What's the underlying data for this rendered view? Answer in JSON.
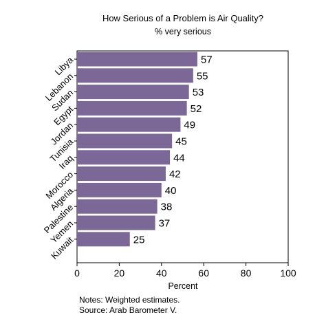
{
  "chart_data": {
    "type": "bar",
    "orientation": "horizontal",
    "title": "How Serious of a Problem is Air Quality?",
    "subtitle": "% very serious",
    "categories": [
      "Libya",
      "Lebanon",
      "Sudan",
      "Egypt",
      "Jordan",
      "Tunisia",
      "Iraq",
      "Morocco",
      "Algeria",
      "Palestine",
      "Yemen",
      "Kuwait"
    ],
    "values": [
      57,
      55,
      53,
      52,
      49,
      45,
      44,
      42,
      40,
      38,
      37,
      25
    ],
    "xlabel": "Percent",
    "ylabel": "",
    "xlim": [
      0,
      100
    ],
    "xticks": [
      0,
      20,
      40,
      60,
      80,
      100
    ],
    "bar_color": "#7b6897",
    "data_labels": true,
    "grid": false,
    "notes": [
      "Notes: Weighted estimates.",
      "Source: Arab Barometer V."
    ]
  }
}
